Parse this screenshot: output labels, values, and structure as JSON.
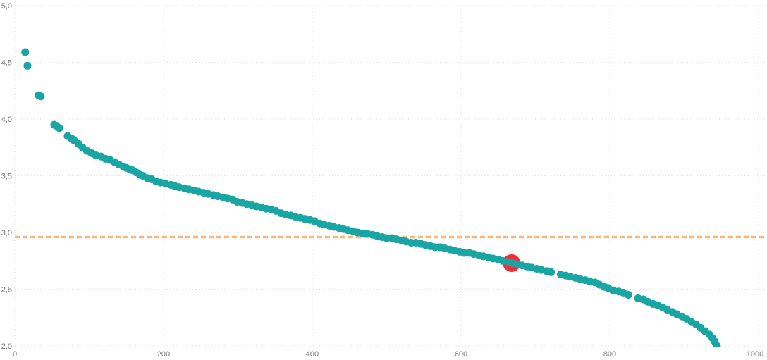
{
  "chart_data": {
    "type": "scatter",
    "title": "",
    "xlabel": "",
    "ylabel": "",
    "xlim": [
      0,
      1000
    ],
    "ylim": [
      2.0,
      5.0
    ],
    "grid": "dotted",
    "x_tick_values": [
      0,
      200,
      400,
      600,
      800,
      1000
    ],
    "x_tick_labels": [
      "0",
      "200",
      "400",
      "600",
      "800",
      "1000"
    ],
    "y_tick_values": [
      2.0,
      2.5,
      3.0,
      3.5,
      4.0,
      4.5,
      5.0
    ],
    "y_tick_labels": [
      "2,0",
      "2,5",
      "3,0",
      "3,5",
      "4,0",
      "4,5",
      "5,0"
    ],
    "reference_line": {
      "y": 2.96,
      "style": "dashed",
      "color": "#F9B87E"
    },
    "highlight_point": {
      "x": 668,
      "y": 2.73,
      "color": "#EE2E36",
      "radius": 12.5
    },
    "series": [
      {
        "name": "sorted-values",
        "color": "#18A5A4",
        "marker_radius": 5.5,
        "points": [
          [
            14,
            4.59
          ],
          [
            17,
            4.47
          ],
          [
            32,
            4.21
          ],
          [
            35,
            4.2
          ],
          [
            53,
            3.95
          ],
          [
            56,
            3.94
          ],
          [
            60,
            3.92
          ],
          [
            71,
            3.85
          ],
          [
            76,
            3.83
          ],
          [
            80,
            3.81
          ],
          [
            86,
            3.78
          ],
          [
            91,
            3.75
          ],
          [
            97,
            3.72
          ],
          [
            103,
            3.7
          ],
          [
            109,
            3.68
          ],
          [
            116,
            3.67
          ],
          [
            122,
            3.65
          ],
          [
            128,
            3.64
          ],
          [
            134,
            3.62
          ],
          [
            140,
            3.6
          ],
          [
            146,
            3.58
          ],
          [
            150,
            3.57
          ],
          [
            154,
            3.56
          ],
          [
            158,
            3.55
          ],
          [
            163,
            3.53
          ],
          [
            168,
            3.51
          ],
          [
            172,
            3.5
          ],
          [
            178,
            3.48
          ],
          [
            184,
            3.47
          ],
          [
            190,
            3.45
          ],
          [
            196,
            3.44
          ],
          [
            203,
            3.43
          ],
          [
            210,
            3.42
          ],
          [
            215,
            3.41
          ],
          [
            221,
            3.4
          ],
          [
            228,
            3.39
          ],
          [
            234,
            3.38
          ],
          [
            241,
            3.37
          ],
          [
            247,
            3.36
          ],
          [
            254,
            3.35
          ],
          [
            260,
            3.34
          ],
          [
            267,
            3.33
          ],
          [
            273,
            3.32
          ],
          [
            280,
            3.31
          ],
          [
            286,
            3.3
          ],
          [
            293,
            3.29
          ],
          [
            299,
            3.27
          ],
          [
            306,
            3.26
          ],
          [
            312,
            3.25
          ],
          [
            319,
            3.24
          ],
          [
            325,
            3.23
          ],
          [
            332,
            3.22
          ],
          [
            338,
            3.21
          ],
          [
            345,
            3.2
          ],
          [
            351,
            3.19
          ],
          [
            358,
            3.17
          ],
          [
            364,
            3.16
          ],
          [
            371,
            3.15
          ],
          [
            377,
            3.14
          ],
          [
            384,
            3.13
          ],
          [
            390,
            3.12
          ],
          [
            397,
            3.11
          ],
          [
            403,
            3.1
          ],
          [
            410,
            3.08
          ],
          [
            416,
            3.07
          ],
          [
            423,
            3.06
          ],
          [
            429,
            3.05
          ],
          [
            436,
            3.04
          ],
          [
            442,
            3.03
          ],
          [
            448,
            3.02
          ],
          [
            455,
            3.01
          ],
          [
            461,
            3.0
          ],
          [
            468,
            2.99
          ],
          [
            474,
            2.99
          ],
          [
            481,
            2.98
          ],
          [
            487,
            2.97
          ],
          [
            494,
            2.96
          ],
          [
            500,
            2.95
          ],
          [
            507,
            2.95
          ],
          [
            513,
            2.94
          ],
          [
            520,
            2.93
          ],
          [
            526,
            2.92
          ],
          [
            533,
            2.91
          ],
          [
            539,
            2.91
          ],
          [
            546,
            2.9
          ],
          [
            552,
            2.89
          ],
          [
            559,
            2.88
          ],
          [
            565,
            2.87
          ],
          [
            572,
            2.87
          ],
          [
            578,
            2.86
          ],
          [
            585,
            2.85
          ],
          [
            591,
            2.84
          ],
          [
            598,
            2.83
          ],
          [
            604,
            2.82
          ],
          [
            611,
            2.82
          ],
          [
            617,
            2.81
          ],
          [
            624,
            2.8
          ],
          [
            630,
            2.79
          ],
          [
            637,
            2.78
          ],
          [
            643,
            2.77
          ],
          [
            650,
            2.76
          ],
          [
            656,
            2.75
          ],
          [
            663,
            2.74
          ],
          [
            670,
            2.73
          ],
          [
            676,
            2.72
          ],
          [
            682,
            2.71
          ],
          [
            689,
            2.7
          ],
          [
            695,
            2.69
          ],
          [
            702,
            2.68
          ],
          [
            708,
            2.67
          ],
          [
            715,
            2.66
          ],
          [
            721,
            2.65
          ],
          [
            734,
            2.63
          ],
          [
            741,
            2.62
          ],
          [
            747,
            2.61
          ],
          [
            754,
            2.6
          ],
          [
            760,
            2.59
          ],
          [
            767,
            2.58
          ],
          [
            773,
            2.57
          ],
          [
            780,
            2.56
          ],
          [
            786,
            2.54
          ],
          [
            793,
            2.52
          ],
          [
            798,
            2.51
          ],
          [
            805,
            2.49
          ],
          [
            812,
            2.48
          ],
          [
            818,
            2.47
          ],
          [
            825,
            2.45
          ],
          [
            838,
            2.42
          ],
          [
            845,
            2.41
          ],
          [
            851,
            2.39
          ],
          [
            858,
            2.37
          ],
          [
            864,
            2.36
          ],
          [
            871,
            2.34
          ],
          [
            877,
            2.32
          ],
          [
            884,
            2.3
          ],
          [
            890,
            2.28
          ],
          [
            897,
            2.26
          ],
          [
            903,
            2.24
          ],
          [
            910,
            2.21
          ],
          [
            916,
            2.19
          ],
          [
            922,
            2.16
          ],
          [
            928,
            2.13
          ],
          [
            934,
            2.1
          ],
          [
            938,
            2.07
          ],
          [
            941,
            2.04
          ],
          [
            944,
            2.0
          ]
        ]
      }
    ],
    "colors": {
      "point": "#18A5A4",
      "highlight": "#EE2E36",
      "reference": "#F9B87E",
      "gridline": "#DADADA",
      "tick_label": "#777777",
      "background": "#FFFFFF"
    }
  }
}
